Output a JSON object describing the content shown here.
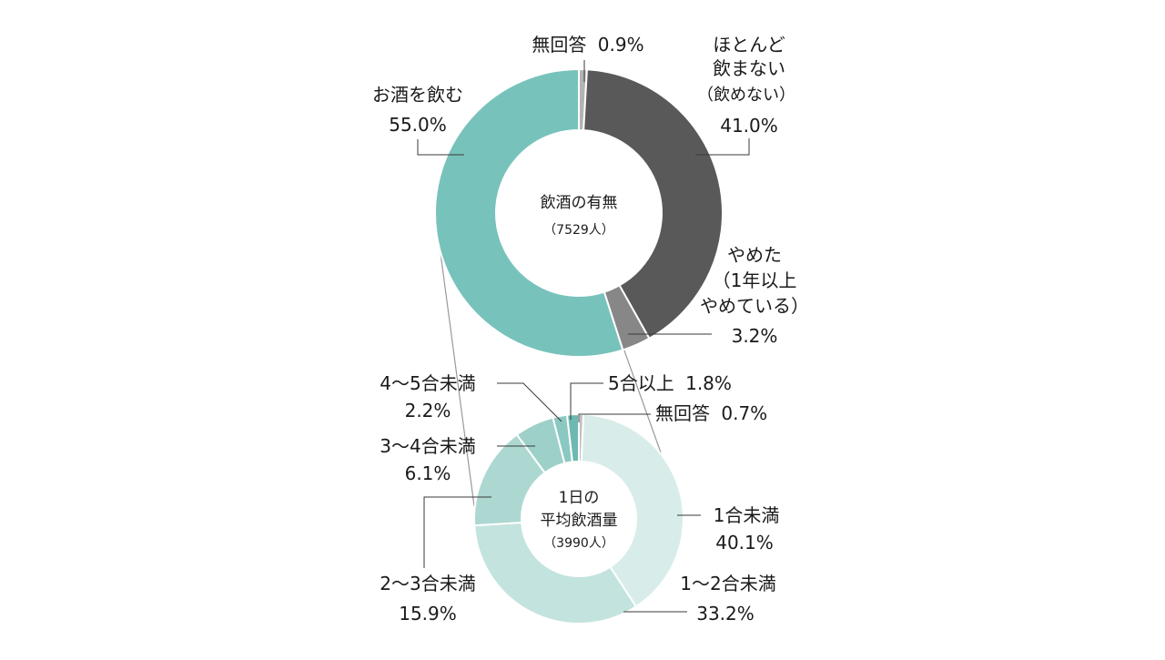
{
  "chart_data": [
    {
      "type": "pie",
      "variant": "donut",
      "center_title": "飲酒の有無",
      "center_subtitle": "（7529人）",
      "slices": [
        {
          "label_lines": [
            "無回答"
          ],
          "value": 0.9,
          "value_text": "0.9%",
          "color": "#b3b3b3"
        },
        {
          "label_lines": [
            "ほとんど",
            "飲まない",
            "（飲めない）"
          ],
          "value": 41.0,
          "value_text": "41.0%",
          "color": "#595959"
        },
        {
          "label_lines": [
            "やめた",
            "（1年以上",
            "やめている）"
          ],
          "value": 3.2,
          "value_text": "3.2%",
          "color": "#878787"
        },
        {
          "label_lines": [
            "お酒を飲む"
          ],
          "value": 55.0,
          "value_text": "55.0%",
          "color": "#78c2bc"
        }
      ]
    },
    {
      "type": "pie",
      "variant": "donut",
      "center_title_lines": [
        "1日の",
        "平均飲酒量"
      ],
      "center_subtitle": "（3990人）",
      "slices": [
        {
          "label_lines": [
            "無回答"
          ],
          "value": 0.7,
          "value_text": "0.7%",
          "color": "#bfbfbf"
        },
        {
          "label_lines": [
            "1合未満"
          ],
          "value": 40.1,
          "value_text": "40.1%",
          "color": "#d8ede9"
        },
        {
          "label_lines": [
            "1〜2合未満"
          ],
          "value": 33.2,
          "value_text": "33.2%",
          "color": "#c3e3de"
        },
        {
          "label_lines": [
            "2〜3合未満"
          ],
          "value": 15.9,
          "value_text": "15.9%",
          "color": "#add8d2"
        },
        {
          "label_lines": [
            "3〜4合未満"
          ],
          "value": 6.1,
          "value_text": "6.1%",
          "color": "#9dd0c9"
        },
        {
          "label_lines": [
            "4〜5合未満"
          ],
          "value": 2.2,
          "value_text": "2.2%",
          "color": "#8ac9c1"
        },
        {
          "label_lines": [
            "5合以上"
          ],
          "value": 1.8,
          "value_text": "1.8%",
          "color": "#6db9b1"
        }
      ]
    }
  ]
}
